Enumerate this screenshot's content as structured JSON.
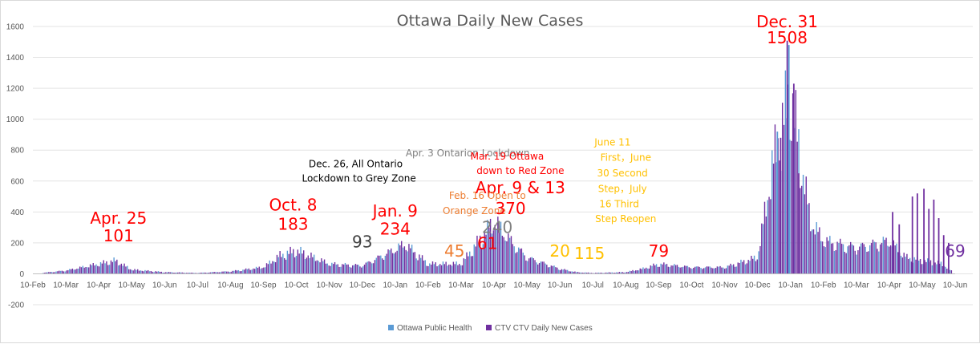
{
  "chart_data": {
    "type": "bar",
    "title": "Ottawa Daily New Cases",
    "ylim": [
      -200,
      1600
    ],
    "yticks": [
      -200,
      0,
      200,
      400,
      600,
      800,
      1000,
      1200,
      1400,
      1600
    ],
    "x_tick_labels": [
      "10-Feb",
      "10-Mar",
      "10-Apr",
      "10-May",
      "10-Jun",
      "10-Jul",
      "10-Aug",
      "10-Sep",
      "10-Oct",
      "10-Nov",
      "10-Dec",
      "10-Jan",
      "10-Feb",
      "10-Mar",
      "10-Apr",
      "10-May",
      "10-Jun",
      "10-Jul",
      "10-Aug",
      "10-Sep",
      "10-Oct",
      "10-Nov",
      "10-Dec",
      "10-Jan",
      "10-Feb",
      "10-Mar",
      "10-Apr",
      "10-May",
      "10-Jun"
    ],
    "grid": "horizontal",
    "legend_placement": "bottom",
    "series": [
      {
        "name": "Ottawa Public Health",
        "color": "#5b9bd5"
      },
      {
        "name": "CTV CTV Daily New Cases",
        "color": "#7030a0"
      }
    ],
    "approx_daily_profile": {
      "unit": "cases per day, estimated at month points (index = months since 10-Feb)",
      "points": [
        [
          0,
          0
        ],
        [
          1,
          20
        ],
        [
          2,
          60
        ],
        [
          2.5,
          80
        ],
        [
          3,
          25
        ],
        [
          4,
          10
        ],
        [
          5,
          5
        ],
        [
          6,
          15
        ],
        [
          7,
          40
        ],
        [
          7.5,
          110
        ],
        [
          8,
          140
        ],
        [
          9,
          60
        ],
        [
          10,
          50
        ],
        [
          11,
          150
        ],
        [
          11.3,
          180
        ],
        [
          12,
          60
        ],
        [
          13,
          60
        ],
        [
          13.7,
          240
        ],
        [
          14,
          320
        ],
        [
          14.5,
          200
        ],
        [
          15,
          100
        ],
        [
          16,
          30
        ],
        [
          16.5,
          10
        ],
        [
          17,
          5
        ],
        [
          18,
          10
        ],
        [
          18.5,
          30
        ],
        [
          19,
          60
        ],
        [
          20,
          40
        ],
        [
          21,
          40
        ],
        [
          22,
          100
        ],
        [
          22.5,
          700
        ],
        [
          23,
          1100
        ],
        [
          23.3,
          700
        ],
        [
          23.6,
          320
        ],
        [
          24,
          200
        ],
        [
          25,
          160
        ],
        [
          26,
          200
        ],
        [
          26.5,
          100
        ],
        [
          27,
          80
        ],
        [
          27.6,
          60
        ],
        [
          28,
          0
        ]
      ]
    },
    "spikes": [
      {
        "x": 22.9,
        "value": 1508,
        "series": 1
      },
      {
        "x": 22.95,
        "value": 1480,
        "series": 0
      },
      {
        "x": 23.1,
        "value": 1230,
        "series": 1
      },
      {
        "x": 22.6,
        "value": 920,
        "series": 0
      },
      {
        "x": 22.7,
        "value": 880,
        "series": 1
      },
      {
        "x": 23.25,
        "value": 650,
        "series": 1
      },
      {
        "x": 26.7,
        "value": 500,
        "series": 1
      },
      {
        "x": 26.85,
        "value": 520,
        "series": 1
      },
      {
        "x": 27.05,
        "value": 550,
        "series": 1
      },
      {
        "x": 27.2,
        "value": 420,
        "series": 1
      },
      {
        "x": 27.35,
        "value": 480,
        "series": 1
      },
      {
        "x": 27.5,
        "value": 360,
        "series": 1
      },
      {
        "x": 27.65,
        "value": 250,
        "series": 1
      },
      {
        "x": 27.8,
        "value": 200,
        "series": 1
      },
      {
        "x": 26.1,
        "value": 400,
        "series": 1
      },
      {
        "x": 26.3,
        "value": 320,
        "series": 1
      }
    ],
    "annotations": [
      {
        "text": "Apr. 25",
        "color": "#ff0000",
        "size": 20,
        "x": 2.6,
        "y": 324
      },
      {
        "text": "101",
        "color": "#ff0000",
        "size": 20,
        "x": 2.6,
        "y": 210
      },
      {
        "text": "Oct. 8",
        "color": "#ff0000",
        "size": 20,
        "x": 7.9,
        "y": 410
      },
      {
        "text": "183",
        "color": "#ff0000",
        "size": 20,
        "x": 7.9,
        "y": 285
      },
      {
        "text": "93",
        "color": "#404040",
        "size": 20,
        "x": 10.0,
        "y": 170
      },
      {
        "text": "Jan. 9",
        "color": "#ff0000",
        "size": 20,
        "x": 11.0,
        "y": 370
      },
      {
        "text": "234",
        "color": "#ff0000",
        "size": 20,
        "x": 11.0,
        "y": 255
      },
      {
        "text": "Apr. 3 Ontarion Lockdown",
        "color": "#808080",
        "size": 12,
        "x": 13.2,
        "y": 760
      },
      {
        "text": "Dec. 26, All Ontario",
        "color": "#000000",
        "size": 12,
        "x": 9.8,
        "y": 690
      },
      {
        "text": "Lockdown to Grey Zone",
        "color": "#000000",
        "size": 12,
        "x": 9.9,
        "y": 595
      },
      {
        "text": "Mar. 19 Ottawa",
        "color": "#ff0000",
        "size": 12,
        "x": 14.4,
        "y": 740
      },
      {
        "text": "down to Red Zone",
        "color": "#ff0000",
        "size": 12,
        "x": 14.8,
        "y": 645
      },
      {
        "text": "Apr. 9 & 13",
        "color": "#ff0000",
        "size": 20,
        "x": 14.8,
        "y": 520
      },
      {
        "text": "Feb. 16 Open to",
        "color": "#ed7d31",
        "size": 12,
        "x": 13.8,
        "y": 485
      },
      {
        "text": "Orange Zone",
        "color": "#ed7d31",
        "size": 12,
        "x": 13.4,
        "y": 385
      },
      {
        "text": "370",
        "color": "#ff0000",
        "size": 20,
        "x": 14.5,
        "y": 385
      },
      {
        "text": "240",
        "color": "#808080",
        "size": 20,
        "x": 14.1,
        "y": 265
      },
      {
        "text": "45",
        "color": "#ed7d31",
        "size": 20,
        "x": 12.8,
        "y": 110
      },
      {
        "text": "61",
        "color": "#ff0000",
        "size": 20,
        "x": 13.8,
        "y": 160
      },
      {
        "text": "20",
        "color": "#ffc000",
        "size": 20,
        "x": 16.0,
        "y": 110
      },
      {
        "text": "115",
        "color": "#ffc000",
        "size": 20,
        "x": 16.9,
        "y": 95
      },
      {
        "text": "June 11",
        "color": "#ffc000",
        "size": 12,
        "x": 17.6,
        "y": 830
      },
      {
        "text": "First，June",
        "color": "#ffc000",
        "size": 12,
        "x": 18.0,
        "y": 730
      },
      {
        "text": "30 Second",
        "color": "#ffc000",
        "size": 12,
        "x": 17.9,
        "y": 630
      },
      {
        "text": "Step，July",
        "color": "#ffc000",
        "size": 12,
        "x": 17.9,
        "y": 530
      },
      {
        "text": "16 Third",
        "color": "#ffc000",
        "size": 12,
        "x": 17.8,
        "y": 430
      },
      {
        "text": "Step Reopen",
        "color": "#ffc000",
        "size": 12,
        "x": 18.0,
        "y": 335
      },
      {
        "text": "79",
        "color": "#ff0000",
        "size": 20,
        "x": 19.0,
        "y": 110
      },
      {
        "text": "Dec. 31",
        "color": "#ff0000",
        "size": 20,
        "x": 22.9,
        "y": 1595
      },
      {
        "text": "1508",
        "color": "#ff0000",
        "size": 20,
        "x": 22.9,
        "y": 1490
      },
      {
        "text": "69",
        "color": "#7030a0",
        "size": 20,
        "x": 28.0,
        "y": 110
      }
    ]
  }
}
